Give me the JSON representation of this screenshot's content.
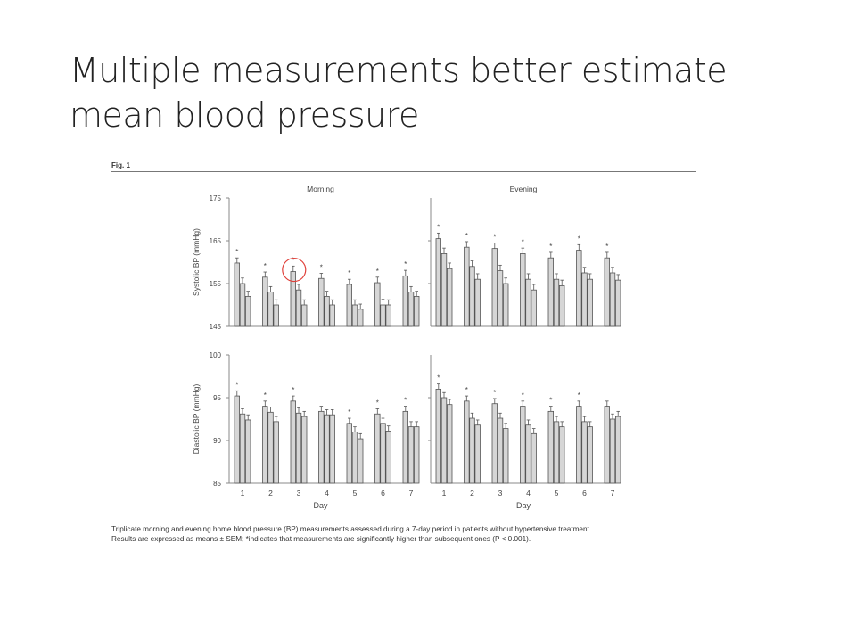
{
  "slide": {
    "title_line1": "Multiple measurements better estimate",
    "title_line2": "mean blood pressure"
  },
  "figure": {
    "label": "Fig. 1",
    "caption_line1": "Triplicate morning and evening home blood pressure (BP) measurements assessed during a 7-day period in patients without hypertensive treatment.",
    "caption_line2": "Results are expressed as means ± SEM; *indicates that measurements are significantly higher than subsequent ones (P < 0.001)."
  },
  "colors": {
    "bar_fill": "#d6d6d6",
    "bar_stroke": "#555555",
    "highlight_circle": "#e0403a"
  },
  "highlight": {
    "panel": 0,
    "day": 3
  },
  "chart_data": [
    {
      "type": "bar",
      "title": "Morning",
      "ylabel": "Systolic BP (mmHg)",
      "xlabel": "",
      "ylim": [
        145,
        175
      ],
      "yticks": [
        145,
        155,
        165,
        175
      ],
      "categories": [
        "1",
        "2",
        "3",
        "4",
        "5",
        "6",
        "7"
      ],
      "series": [
        {
          "values": [
            159.8,
            156.5,
            157.8,
            156.2,
            154.8,
            155.2,
            156.8
          ],
          "err": [
            1.2,
            1.2,
            1.3,
            1.2,
            1.2,
            1.3,
            1.3
          ]
        },
        {
          "values": [
            155.0,
            153.0,
            153.5,
            152.0,
            150.0,
            150.0,
            153.0
          ],
          "err": [
            1.3,
            1.3,
            1.3,
            1.2,
            1.2,
            1.3,
            1.3
          ]
        },
        {
          "values": [
            152.0,
            150.0,
            150.0,
            150.0,
            149.0,
            150.0,
            152.0
          ],
          "err": [
            1.2,
            1.2,
            1.2,
            1.2,
            1.2,
            1.2,
            1.2
          ]
        }
      ],
      "significant": [
        true,
        true,
        true,
        true,
        true,
        true,
        true
      ]
    },
    {
      "type": "bar",
      "title": "Evening",
      "ylabel": "",
      "xlabel": "",
      "ylim": [
        145,
        175
      ],
      "yticks": [],
      "categories": [
        "1",
        "2",
        "3",
        "4",
        "5",
        "6",
        "7"
      ],
      "series": [
        {
          "values": [
            165.5,
            163.5,
            163.2,
            162.0,
            161.0,
            162.8,
            161.0
          ],
          "err": [
            1.3,
            1.3,
            1.3,
            1.3,
            1.3,
            1.3,
            1.3
          ]
        },
        {
          "values": [
            162.0,
            159.0,
            158.0,
            156.0,
            156.0,
            157.5,
            157.5
          ],
          "err": [
            1.3,
            1.3,
            1.3,
            1.3,
            1.3,
            1.3,
            1.3
          ]
        },
        {
          "values": [
            158.5,
            156.0,
            155.0,
            153.5,
            154.5,
            156.0,
            155.8
          ],
          "err": [
            1.3,
            1.3,
            1.3,
            1.3,
            1.3,
            1.3,
            1.3
          ]
        }
      ],
      "significant": [
        true,
        true,
        true,
        true,
        true,
        true,
        true
      ]
    },
    {
      "type": "bar",
      "title": "",
      "ylabel": "Diastolic BP (mmHg)",
      "xlabel": "Day",
      "ylim": [
        85,
        100
      ],
      "yticks": [
        85,
        90,
        95,
        100
      ],
      "categories": [
        "1",
        "2",
        "3",
        "4",
        "5",
        "6",
        "7"
      ],
      "series": [
        {
          "values": [
            95.2,
            94.0,
            94.6,
            93.4,
            92.0,
            93.1,
            93.4
          ],
          "err": [
            0.6,
            0.6,
            0.6,
            0.6,
            0.6,
            0.6,
            0.6
          ]
        },
        {
          "values": [
            93.1,
            93.3,
            93.2,
            93.0,
            91.0,
            92.0,
            91.6
          ],
          "err": [
            0.6,
            0.6,
            0.6,
            0.6,
            0.6,
            0.6,
            0.6
          ]
        },
        {
          "values": [
            92.4,
            92.2,
            92.8,
            93.0,
            90.2,
            91.1,
            91.6
          ],
          "err": [
            0.6,
            0.6,
            0.6,
            0.6,
            0.6,
            0.6,
            0.6
          ]
        }
      ],
      "significant": [
        true,
        true,
        true,
        false,
        true,
        true,
        true
      ]
    },
    {
      "type": "bar",
      "title": "",
      "ylabel": "",
      "xlabel": "Day",
      "ylim": [
        85,
        100
      ],
      "yticks": [],
      "categories": [
        "1",
        "2",
        "3",
        "4",
        "5",
        "6",
        "7"
      ],
      "series": [
        {
          "values": [
            96.0,
            94.6,
            94.3,
            94.0,
            93.4,
            94.0,
            94.0
          ],
          "err": [
            0.6,
            0.6,
            0.6,
            0.6,
            0.6,
            0.6,
            0.6
          ]
        },
        {
          "values": [
            95.0,
            92.6,
            92.6,
            91.8,
            92.2,
            92.2,
            92.5
          ],
          "err": [
            0.6,
            0.6,
            0.6,
            0.6,
            0.6,
            0.6,
            0.6
          ]
        },
        {
          "values": [
            94.2,
            91.8,
            91.4,
            90.8,
            91.6,
            91.6,
            92.8
          ],
          "err": [
            0.6,
            0.6,
            0.6,
            0.6,
            0.6,
            0.6,
            0.6
          ]
        }
      ],
      "significant": [
        true,
        true,
        true,
        true,
        true,
        true,
        false
      ]
    }
  ]
}
